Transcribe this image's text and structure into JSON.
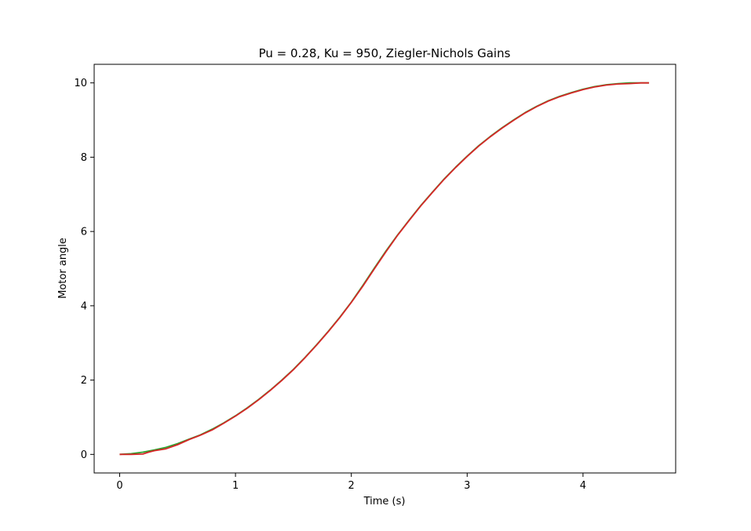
{
  "chart_data": {
    "type": "line",
    "title": "Pu = 0.28, Ku = 950, Ziegler-Nichols Gains",
    "xlabel": "Time (s)",
    "ylabel": "Motor angle",
    "xlim": [
      -0.22,
      4.8
    ],
    "ylim": [
      -0.5,
      10.5
    ],
    "xticks": [
      0,
      1,
      2,
      3,
      4
    ],
    "yticks": [
      0,
      2,
      4,
      6,
      8,
      10
    ],
    "grid": false,
    "series": [
      {
        "color": "#2ca02c",
        "x": [
          0,
          0.1,
          0.2,
          0.3,
          0.4,
          0.5,
          0.6,
          0.7,
          0.8,
          0.9,
          1.0,
          1.1,
          1.2,
          1.3,
          1.4,
          1.5,
          1.6,
          1.7,
          1.8,
          1.9,
          2.0,
          2.1,
          2.2,
          2.3,
          2.4,
          2.5,
          2.6,
          2.7,
          2.8,
          2.9,
          3.0,
          3.1,
          3.2,
          3.3,
          3.4,
          3.5,
          3.6,
          3.7,
          3.8,
          3.9,
          4.0,
          4.1,
          4.2,
          4.3,
          4.4,
          4.5,
          4.57
        ],
        "y": [
          0.0,
          0.02,
          0.06,
          0.12,
          0.19,
          0.29,
          0.41,
          0.53,
          0.68,
          0.85,
          1.04,
          1.25,
          1.48,
          1.73,
          2.0,
          2.29,
          2.61,
          2.95,
          3.31,
          3.69,
          4.1,
          4.55,
          5.02,
          5.48,
          5.91,
          6.31,
          6.7,
          7.06,
          7.41,
          7.73,
          8.03,
          8.31,
          8.56,
          8.79,
          9.0,
          9.2,
          9.37,
          9.52,
          9.64,
          9.74,
          9.83,
          9.9,
          9.95,
          9.98,
          10.0,
          10.0,
          10.0
        ]
      },
      {
        "color": "#d62728",
        "x": [
          0,
          0.1,
          0.2,
          0.25,
          0.3,
          0.4,
          0.5,
          0.6,
          0.7,
          0.8,
          0.9,
          1.0,
          1.1,
          1.2,
          1.3,
          1.4,
          1.5,
          1.6,
          1.7,
          1.8,
          1.9,
          2.0,
          2.1,
          2.2,
          2.3,
          2.4,
          2.5,
          2.6,
          2.7,
          2.8,
          2.9,
          3.0,
          3.1,
          3.2,
          3.3,
          3.4,
          3.5,
          3.6,
          3.7,
          3.8,
          3.9,
          4.0,
          4.1,
          4.2,
          4.3,
          4.4,
          4.5,
          4.57
        ],
        "y": [
          0.0,
          0.0,
          0.01,
          0.06,
          0.1,
          0.15,
          0.26,
          0.4,
          0.52,
          0.66,
          0.84,
          1.03,
          1.24,
          1.47,
          1.72,
          1.99,
          2.28,
          2.6,
          2.94,
          3.3,
          3.68,
          4.09,
          4.53,
          5.0,
          5.46,
          5.9,
          6.3,
          6.69,
          7.05,
          7.4,
          7.72,
          8.02,
          8.3,
          8.55,
          8.78,
          8.99,
          9.19,
          9.36,
          9.51,
          9.63,
          9.73,
          9.82,
          9.89,
          9.94,
          9.97,
          9.98,
          10.0,
          10.0
        ]
      }
    ]
  }
}
